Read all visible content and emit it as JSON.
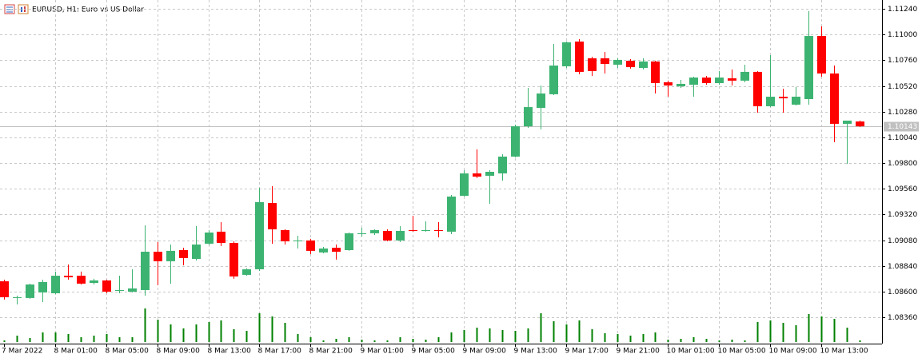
{
  "chart_data": {
    "type": "candlestick",
    "title": "EURUSD, H1:  Euro vs US Dollar",
    "categories": [
      "7 Mar 2022",
      null,
      null,
      null,
      "8 Mar 01:00",
      null,
      null,
      null,
      "8 Mar 05:00",
      null,
      null,
      null,
      "8 Mar 09:00",
      null,
      null,
      null,
      "8 Mar 13:00",
      null,
      null,
      null,
      "8 Mar 17:00",
      null,
      null,
      null,
      "8 Mar 21:00",
      null,
      null,
      null,
      "9 Mar 01:00",
      null,
      null,
      null,
      "9 Mar 05:00",
      null,
      null,
      null,
      "9 Mar 09:00",
      null,
      null,
      null,
      "9 Mar 13:00",
      null,
      null,
      null,
      "9 Mar 17:00",
      null,
      null,
      null,
      "9 Mar 21:00",
      null,
      null,
      null,
      "10 Mar 01:00",
      null,
      null,
      null,
      "10 Mar 05:00",
      null,
      null,
      null,
      "10 Mar 09:00",
      null,
      null,
      null,
      "10 Mar 13:00",
      null,
      null,
      null
    ],
    "open": [
      1.08696,
      1.08547,
      1.0854,
      1.08592,
      1.08584,
      1.08748,
      1.08748,
      1.08681,
      1.08704,
      1.08607,
      1.08599,
      1.08614,
      1.08972,
      1.08883,
      1.08987,
      1.08905,
      1.09047,
      1.09159,
      1.09054,
      1.08756,
      1.08808,
      1.09427,
      1.09174,
      1.09077,
      1.09077,
      1.08965,
      1.09009,
      1.08987,
      1.09136,
      1.09144,
      1.09166,
      1.09077,
      1.09174,
      1.09166,
      1.09174,
      1.09159,
      1.09494,
      1.09703,
      1.09681,
      1.09703,
      1.0986,
      1.10143,
      1.10315,
      1.10442,
      1.10703,
      1.10934,
      1.10778,
      1.10778,
      1.10718,
      1.10755,
      1.10688,
      1.10748,
      1.10554,
      1.10516,
      1.10531,
      1.10598,
      1.10546,
      1.10591,
      1.10569,
      1.10651,
      1.1033,
      1.10419,
      1.10345,
      1.10397,
      1.10986,
      1.10636,
      1.10166,
      1.10188
    ],
    "high": [
      1.08711,
      1.08562,
      1.08674,
      1.08711,
      1.08786,
      1.08853,
      1.08786,
      1.08719,
      1.08711,
      1.08748,
      1.08808,
      1.09218,
      1.09062,
      1.09039,
      1.09009,
      1.09211,
      1.09174,
      1.09248,
      1.09069,
      1.08816,
      1.09569,
      1.09584,
      1.09181,
      1.09121,
      1.09092,
      1.09017,
      1.09039,
      1.09151,
      1.09196,
      1.09181,
      1.09181,
      1.09211,
      1.09308,
      1.09256,
      1.09248,
      1.09502,
      1.09733,
      1.09927,
      1.09733,
      1.09882,
      1.10158,
      1.10501,
      1.10524,
      1.10912,
      1.10934,
      1.10957,
      1.10792,
      1.10837,
      1.10778,
      1.1077,
      1.10778,
      1.10755,
      1.10569,
      1.10576,
      1.10606,
      1.10613,
      1.10658,
      1.10673,
      1.10718,
      1.10658,
      1.10807,
      1.10494,
      1.10509,
      1.11218,
      1.11076,
      1.1071,
      1.10188,
      1.10196
    ],
    "low": [
      1.08525,
      1.0848,
      1.08532,
      1.08502,
      1.08577,
      1.08711,
      1.08666,
      1.08666,
      1.08584,
      1.08584,
      1.08592,
      1.08562,
      1.08659,
      1.08674,
      1.08845,
      1.0889,
      1.09032,
      1.09024,
      1.08719,
      1.08748,
      1.08793,
      1.09047,
      1.09039,
      1.09002,
      1.0895,
      1.08957,
      1.08898,
      1.0898,
      1.09114,
      1.09129,
      1.09069,
      1.09062,
      1.09159,
      1.09159,
      1.09106,
      1.09136,
      1.09487,
      1.09659,
      1.0942,
      1.09636,
      1.09852,
      1.10128,
      1.10114,
      1.10434,
      1.10688,
      1.10628,
      1.10613,
      1.10636,
      1.10688,
      1.10681,
      1.10673,
      1.10449,
      1.10419,
      1.10501,
      1.10419,
      1.10531,
      1.10531,
      1.10524,
      1.10554,
      1.1027,
      1.10322,
      1.1027,
      1.10337,
      1.10345,
      1.10606,
      1.09994,
      1.09793,
      1.10136
    ],
    "close": [
      1.08547,
      1.08547,
      1.08666,
      1.08689,
      1.08748,
      1.08733,
      1.08674,
      1.08704,
      1.08599,
      1.08614,
      1.08629,
      1.08972,
      1.08883,
      1.0898,
      1.08913,
      1.09039,
      1.09151,
      1.09054,
      1.08741,
      1.08808,
      1.09435,
      1.09181,
      1.09069,
      1.09077,
      1.0898,
      1.09002,
      1.08972,
      1.09144,
      1.09144,
      1.09174,
      1.09077,
      1.09166,
      1.09166,
      1.09174,
      1.09166,
      1.09487,
      1.09703,
      1.09673,
      1.09718,
      1.0986,
      1.10143,
      1.10322,
      1.10449,
      1.1071,
      1.10927,
      1.10651,
      1.10658,
      1.10725,
      1.10763,
      1.10695,
      1.10748,
      1.10546,
      1.10524,
      1.10539,
      1.10598,
      1.10546,
      1.10598,
      1.10569,
      1.10651,
      1.1033,
      1.10419,
      1.10404,
      1.10419,
      1.10986,
      1.10636,
      1.10166,
      1.10196,
      1.10143
    ],
    "volume": [
      2,
      8,
      5,
      12,
      12,
      10,
      6,
      8,
      10,
      6,
      6,
      42,
      28,
      22,
      17,
      22,
      25,
      27,
      16,
      14,
      36,
      32,
      24,
      10,
      6,
      2,
      4,
      6,
      3,
      2,
      2,
      6,
      4,
      3,
      6,
      12,
      15,
      18,
      17,
      15,
      14,
      17,
      36,
      26,
      22,
      27,
      16,
      11,
      10,
      8,
      10,
      12,
      3,
      4,
      6,
      4,
      2,
      3,
      2,
      25,
      27,
      24,
      21,
      35,
      32,
      29,
      18,
      2
    ],
    "volume_lim": [
      0,
      100
    ],
    "up_color": "#3cb371",
    "down_color": "#ff0000",
    "volume_color": "#008000",
    "ylim": [
      1.08114,
      1.11322
    ],
    "yticks": [
      {
        "value": 1.0836,
        "label": "1.08360"
      },
      {
        "value": 1.086,
        "label": "1.08600"
      },
      {
        "value": 1.0884,
        "label": "1.08840"
      },
      {
        "value": 1.0908,
        "label": "1.09080"
      },
      {
        "value": 1.0932,
        "label": "1.09320"
      },
      {
        "value": 1.0956,
        "label": "1.09560"
      },
      {
        "value": 1.098,
        "label": "1.09800"
      },
      {
        "value": 1.1004,
        "label": "1.10040"
      },
      {
        "value": 1.1028,
        "label": "1.10280"
      },
      {
        "value": 1.1052,
        "label": "1.10520"
      },
      {
        "value": 1.1076,
        "label": "1.10760"
      },
      {
        "value": 1.11,
        "label": "1.11000"
      },
      {
        "value": 1.1124,
        "label": "1.11240"
      }
    ],
    "current_price": {
      "value": 1.10143,
      "label": "1.10143"
    },
    "grid": true
  }
}
